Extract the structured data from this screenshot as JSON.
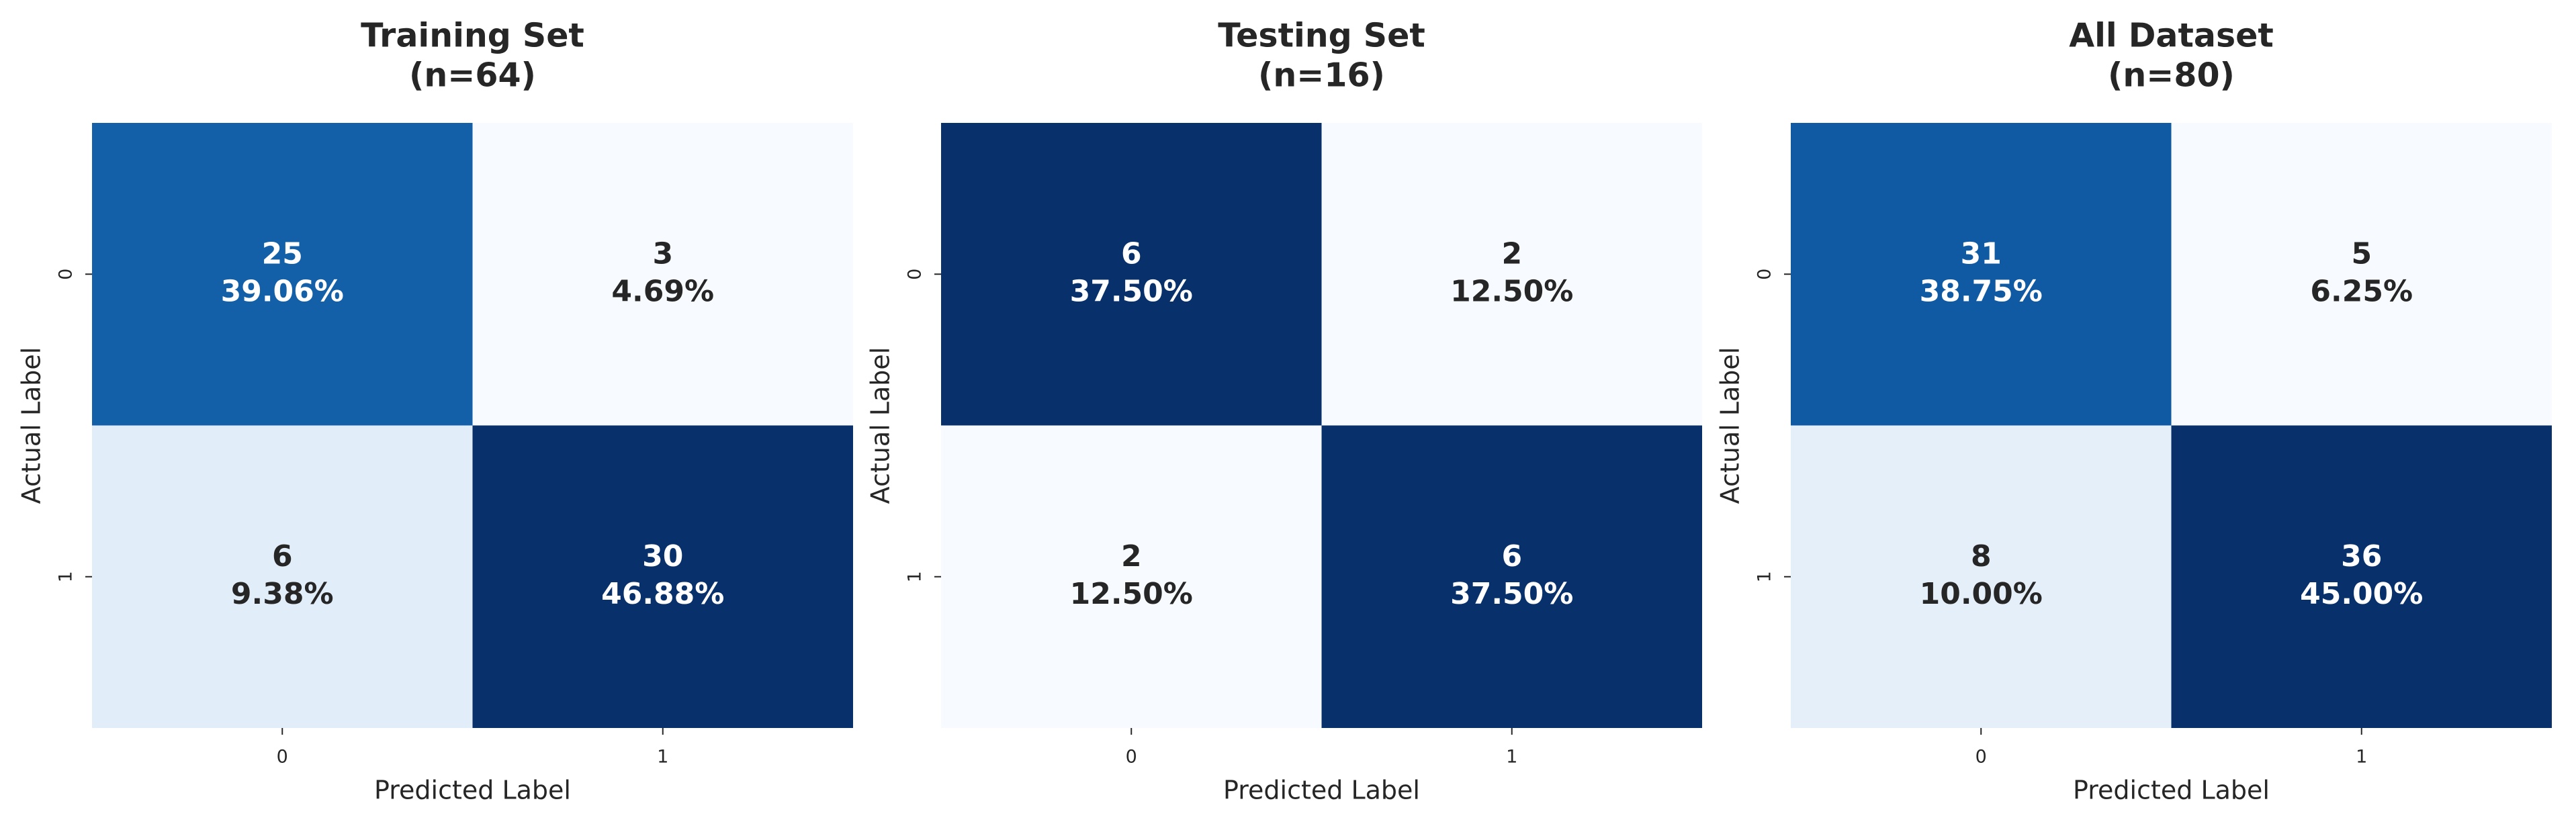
{
  "chart_data": [
    {
      "type": "heatmap",
      "title": "Training Set",
      "subtitle": "(n=64)",
      "xlabel": "Predicted Label",
      "ylabel": "Actual Label",
      "x_categories": [
        "0",
        "1"
      ],
      "y_categories": [
        "0",
        "1"
      ],
      "colormap": "Blues",
      "values": [
        [
          25,
          3
        ],
        [
          6,
          30
        ]
      ],
      "percentages": [
        [
          39.06,
          4.69
        ],
        [
          9.38,
          46.88
        ]
      ],
      "percentage_labels": [
        [
          "39.06%",
          "4.69%"
        ],
        [
          "9.38%",
          "46.88%"
        ]
      ]
    },
    {
      "type": "heatmap",
      "title": "Testing Set",
      "subtitle": "(n=16)",
      "xlabel": "Predicted Label",
      "ylabel": "Actual Label",
      "x_categories": [
        "0",
        "1"
      ],
      "y_categories": [
        "0",
        "1"
      ],
      "colormap": "Blues",
      "values": [
        [
          6,
          2
        ],
        [
          2,
          6
        ]
      ],
      "percentages": [
        [
          37.5,
          12.5
        ],
        [
          12.5,
          37.5
        ]
      ],
      "percentage_labels": [
        [
          "37.50%",
          "12.50%"
        ],
        [
          "12.50%",
          "37.50%"
        ]
      ]
    },
    {
      "type": "heatmap",
      "title": "All Dataset",
      "subtitle": "(n=80)",
      "xlabel": "Predicted Label",
      "ylabel": "Actual Label",
      "x_categories": [
        "0",
        "1"
      ],
      "y_categories": [
        "0",
        "1"
      ],
      "colormap": "Blues",
      "values": [
        [
          31,
          5
        ],
        [
          8,
          36
        ]
      ],
      "percentages": [
        [
          38.75,
          6.25
        ],
        [
          10.0,
          45.0
        ]
      ],
      "percentage_labels": [
        [
          "38.75%",
          "6.25%"
        ],
        [
          "10.00%",
          "45.00%"
        ]
      ]
    }
  ]
}
